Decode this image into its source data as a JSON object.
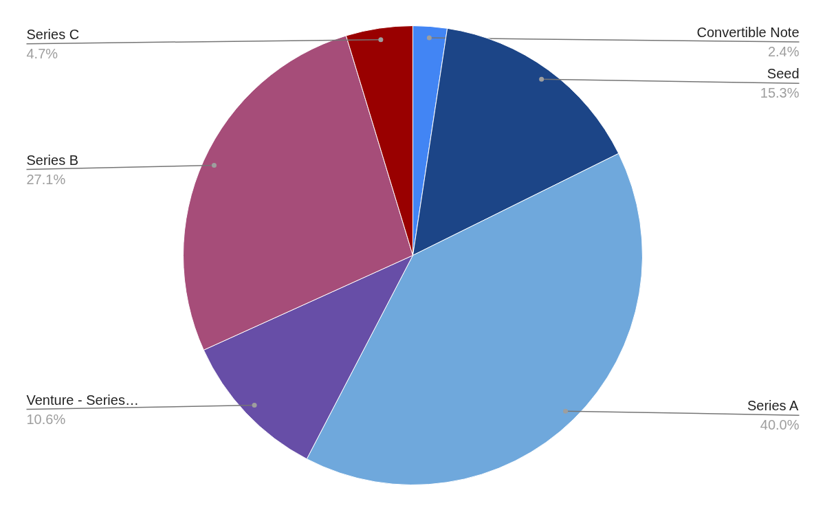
{
  "chart_data": {
    "type": "pie",
    "categories": [
      "Convertible Note",
      "Seed",
      "Series A",
      "Venture - Series…",
      "Series B",
      "Series C"
    ],
    "values": [
      2.4,
      15.3,
      40.0,
      10.6,
      27.1,
      4.7
    ],
    "colors": [
      "#4285f4",
      "#1c4587",
      "#6fa8dc",
      "#674ea7",
      "#a64d79",
      "#990000"
    ],
    "value_labels": [
      "2.4%",
      "15.3%",
      "40.0%",
      "10.6%",
      "27.1%",
      "4.7%"
    ]
  }
}
